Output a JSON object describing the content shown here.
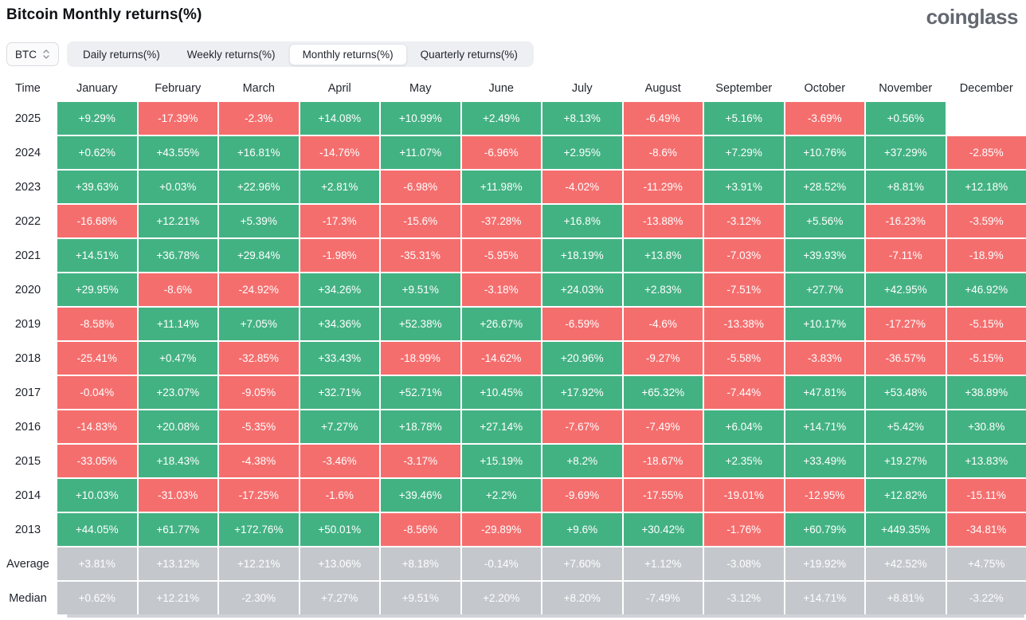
{
  "page": {
    "title": "Bitcoin Monthly returns(%)",
    "brand": "coinglass"
  },
  "controls": {
    "symbol_select": {
      "label": "BTC"
    },
    "tabs": [
      {
        "label": "Daily returns(%)",
        "active": false
      },
      {
        "label": "Weekly returns(%)",
        "active": false
      },
      {
        "label": "Monthly returns(%)",
        "active": true
      },
      {
        "label": "Quarterly returns(%)",
        "active": false
      }
    ]
  },
  "chart_data": {
    "type": "heatmap",
    "title": "Bitcoin Monthly returns(%)",
    "time_header": "Time",
    "months": [
      "January",
      "February",
      "March",
      "April",
      "May",
      "June",
      "July",
      "August",
      "September",
      "October",
      "November",
      "December"
    ],
    "rows": [
      {
        "label": "2025",
        "kind": "year",
        "values": [
          "+9.29%",
          "-17.39%",
          "-2.3%",
          "+14.08%",
          "+10.99%",
          "+2.49%",
          "+8.13%",
          "-6.49%",
          "+5.16%",
          "-3.69%",
          "+0.56%",
          ""
        ]
      },
      {
        "label": "2024",
        "kind": "year",
        "values": [
          "+0.62%",
          "+43.55%",
          "+16.81%",
          "-14.76%",
          "+11.07%",
          "-6.96%",
          "+2.95%",
          "-8.6%",
          "+7.29%",
          "+10.76%",
          "+37.29%",
          "-2.85%"
        ]
      },
      {
        "label": "2023",
        "kind": "year",
        "values": [
          "+39.63%",
          "+0.03%",
          "+22.96%",
          "+2.81%",
          "-6.98%",
          "+11.98%",
          "-4.02%",
          "-11.29%",
          "+3.91%",
          "+28.52%",
          "+8.81%",
          "+12.18%"
        ]
      },
      {
        "label": "2022",
        "kind": "year",
        "values": [
          "-16.68%",
          "+12.21%",
          "+5.39%",
          "-17.3%",
          "-15.6%",
          "-37.28%",
          "+16.8%",
          "-13.88%",
          "-3.12%",
          "+5.56%",
          "-16.23%",
          "-3.59%"
        ]
      },
      {
        "label": "2021",
        "kind": "year",
        "values": [
          "+14.51%",
          "+36.78%",
          "+29.84%",
          "-1.98%",
          "-35.31%",
          "-5.95%",
          "+18.19%",
          "+13.8%",
          "-7.03%",
          "+39.93%",
          "-7.11%",
          "-18.9%"
        ]
      },
      {
        "label": "2020",
        "kind": "year",
        "values": [
          "+29.95%",
          "-8.6%",
          "-24.92%",
          "+34.26%",
          "+9.51%",
          "-3.18%",
          "+24.03%",
          "+2.83%",
          "-7.51%",
          "+27.7%",
          "+42.95%",
          "+46.92%"
        ]
      },
      {
        "label": "2019",
        "kind": "year",
        "values": [
          "-8.58%",
          "+11.14%",
          "+7.05%",
          "+34.36%",
          "+52.38%",
          "+26.67%",
          "-6.59%",
          "-4.6%",
          "-13.38%",
          "+10.17%",
          "-17.27%",
          "-5.15%"
        ]
      },
      {
        "label": "2018",
        "kind": "year",
        "values": [
          "-25.41%",
          "+0.47%",
          "-32.85%",
          "+33.43%",
          "-18.99%",
          "-14.62%",
          "+20.96%",
          "-9.27%",
          "-5.58%",
          "-3.83%",
          "-36.57%",
          "-5.15%"
        ]
      },
      {
        "label": "2017",
        "kind": "year",
        "values": [
          "-0.04%",
          "+23.07%",
          "-9.05%",
          "+32.71%",
          "+52.71%",
          "+10.45%",
          "+17.92%",
          "+65.32%",
          "-7.44%",
          "+47.81%",
          "+53.48%",
          "+38.89%"
        ]
      },
      {
        "label": "2016",
        "kind": "year",
        "values": [
          "-14.83%",
          "+20.08%",
          "-5.35%",
          "+7.27%",
          "+18.78%",
          "+27.14%",
          "-7.67%",
          "-7.49%",
          "+6.04%",
          "+14.71%",
          "+5.42%",
          "+30.8%"
        ]
      },
      {
        "label": "2015",
        "kind": "year",
        "values": [
          "-33.05%",
          "+18.43%",
          "-4.38%",
          "-3.46%",
          "-3.17%",
          "+15.19%",
          "+8.2%",
          "-18.67%",
          "+2.35%",
          "+33.49%",
          "+19.27%",
          "+13.83%"
        ]
      },
      {
        "label": "2014",
        "kind": "year",
        "values": [
          "+10.03%",
          "-31.03%",
          "-17.25%",
          "-1.6%",
          "+39.46%",
          "+2.2%",
          "-9.69%",
          "-17.55%",
          "-19.01%",
          "-12.95%",
          "+12.82%",
          "-15.11%"
        ]
      },
      {
        "label": "2013",
        "kind": "year",
        "values": [
          "+44.05%",
          "+61.77%",
          "+172.76%",
          "+50.01%",
          "-8.56%",
          "-29.89%",
          "+9.6%",
          "+30.42%",
          "-1.76%",
          "+60.79%",
          "+449.35%",
          "-34.81%"
        ]
      },
      {
        "label": "Average",
        "kind": "summary",
        "values": [
          "+3.81%",
          "+13.12%",
          "+12.21%",
          "+13.06%",
          "+8.18%",
          "-0.14%",
          "+7.60%",
          "+1.12%",
          "-3.08%",
          "+19.92%",
          "+42.52%",
          "+4.75%"
        ]
      },
      {
        "label": "Median",
        "kind": "summary",
        "values": [
          "+0.62%",
          "+12.21%",
          "-2.30%",
          "+7.27%",
          "+9.51%",
          "+2.20%",
          "+8.20%",
          "-7.49%",
          "-3.12%",
          "+14.71%",
          "+8.81%",
          "-3.22%"
        ]
      }
    ],
    "colors": {
      "positive": "#43b283",
      "negative": "#f56e6e",
      "summary": "#c4c7cc"
    }
  }
}
